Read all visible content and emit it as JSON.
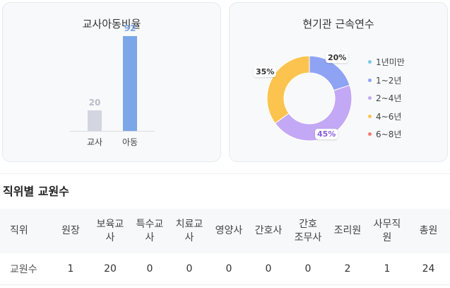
{
  "ratio_card": {
    "title": "교사아동비율",
    "chart_data": {
      "type": "bar",
      "categories": [
        "교사",
        "아동"
      ],
      "values": [
        20,
        92
      ],
      "colors": [
        "#d3d6e0",
        "#7ba7e8"
      ],
      "label_colors": [
        "#b8bcc8",
        "#7ba7e8"
      ]
    }
  },
  "tenure_card": {
    "title": "현기관 근속연수",
    "chart_data": {
      "type": "pie",
      "categories": [
        "1년미만",
        "1~2년",
        "2~4년",
        "4~6년",
        "6~8년"
      ],
      "values": [
        0,
        20,
        45,
        35,
        0
      ],
      "value_labels": [
        "",
        "20%",
        "45%",
        "35%",
        ""
      ],
      "colors": [
        "#7ec8e3",
        "#8fa3f5",
        "#c3a8f5",
        "#fcc44f",
        "#f77b72"
      ],
      "label_colors": [
        "#333333",
        "#333333",
        "#8a5ee0",
        "#333333",
        "#333333"
      ]
    }
  },
  "section": {
    "title": "직위별 교원수"
  },
  "table": {
    "headers": [
      "직위",
      "원장",
      "보육교\n사",
      "특수교\n사",
      "치료교\n사",
      "영양사",
      "간호사",
      "간호\n조무사",
      "조리원",
      "사무직\n원",
      "총원"
    ],
    "row_label": "교원수",
    "values": [
      "1",
      "20",
      "0",
      "0",
      "0",
      "0",
      "0",
      "2",
      "1",
      "24"
    ]
  }
}
